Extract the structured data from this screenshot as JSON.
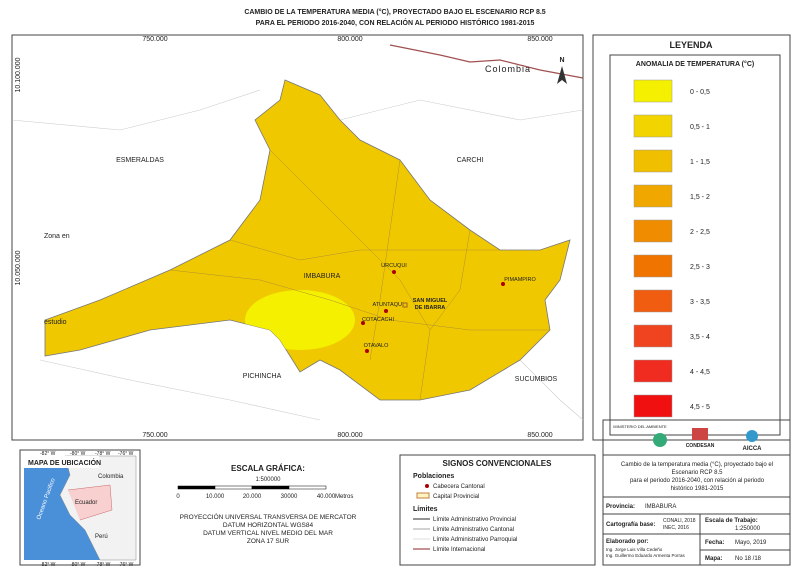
{
  "header": {
    "title_line1": "CAMBIO DE LA TEMPERATURA MEDIA (°C),  PROYECTADO BAJO EL ESCENARIO RCP 8.5",
    "title_line2": "PARA EL PERIODO 2016-2040, CON RELACIÓN AL PERIODO HISTÓRICO 1981-2015"
  },
  "map": {
    "coords_x": [
      "750.000",
      "800.000",
      "850.000"
    ],
    "coords_y": [
      "10.100.000",
      "10.050.000"
    ],
    "north": "N",
    "regions": [
      "ESMERALDAS",
      "CARCHI",
      "IMBABURA",
      "PICHINCHA",
      "SUCUMBIOS",
      "Colombia"
    ],
    "zone": [
      "Zona en",
      "estudio"
    ],
    "towns": [
      "URCUQUI",
      "PIMAMPIRO",
      "ATUNTAQUI",
      "COTACACHI",
      "OTAVALO"
    ],
    "capital": [
      "SAN MIGUEL",
      "DE IBARRA"
    ]
  },
  "legend": {
    "title": "LEYENDA",
    "subtitle": "ANOMALIA DE TEMPERATURA (°C)",
    "items": [
      {
        "label": "0 - 0,5",
        "color": "#f5f000"
      },
      {
        "label": "0,5 - 1",
        "color": "#f2d400"
      },
      {
        "label": "1 - 1,5",
        "color": "#f0c000"
      },
      {
        "label": "1,5 - 2",
        "color": "#f0a800"
      },
      {
        "label": "2 - 2,5",
        "color": "#f08c00"
      },
      {
        "label": "2,5 - 3",
        "color": "#f07400"
      },
      {
        "label": "3 - 3,5",
        "color": "#f05c10"
      },
      {
        "label": "3,5 - 4",
        "color": "#f04420"
      },
      {
        "label": "4 - 4,5",
        "color": "#f02c20"
      },
      {
        "label": "4,5 - 5",
        "color": "#f01010"
      }
    ]
  },
  "location_map": {
    "title": "MAPA DE UBICACIÓN",
    "labels": [
      "Colombia",
      "Ecuador",
      "Perú",
      "Oceano Pacifico"
    ],
    "lon": [
      "-82° W",
      "-80° W",
      "-78° W",
      "-76° W"
    ]
  },
  "scale": {
    "title": "ESCALA GRÁFICA:",
    "ratio": "1:500000",
    "ticks": [
      "0",
      "10.000",
      "20.000",
      "30000",
      "40.000"
    ],
    "unit": "Metros",
    "projection": [
      "PROYECCIÓN UNIVERSAL TRANSVERSA DE MERCATOR",
      "DATUM HORIZONTAL WGS84",
      "DATUM VERTICAL NIVEL MEDIO DEL MAR",
      "ZONA 17 SUR"
    ]
  },
  "signs": {
    "title": "SIGNOS CONVENCIONALES",
    "populations": "Poblaciones",
    "cantonal": "Cabecera Cantonal",
    "provincial": "Capital Provincial",
    "limits": "Límites",
    "limit_items": [
      "Límite Administrativo Provincial",
      "Límite Administrativo Cantonal",
      "Límite Administrativo Parroquial",
      "Límite Internacional"
    ]
  },
  "info": {
    "logos": [
      "MINISTERIO DEL AMBIENTE",
      "CONDESAN",
      "AICCA"
    ],
    "description": [
      "Cambio de la temperatura media (°C),  proyectado bajo el",
      "Escenario RCP 8.5",
      "para el periodo 2016-2040, con relación al periodo",
      "histórico 1981-2015"
    ],
    "province_label": "Provincia:",
    "province": "IMBABURA",
    "base_label": "Cartografía base:",
    "base": [
      "CONALI, 2018",
      "INEC, 2016"
    ],
    "work_scale_label": "Escala de Trabajo:",
    "work_scale": "1:250000",
    "author_label": "Elaborado por:",
    "authors": [
      "Ing. Jorge Luis Villa Cedeño",
      "Ing. Guillermo Eduardo Armenta Porras"
    ],
    "date_label": "Fecha:",
    "date": "Mayo, 2019",
    "map_label": "Mapa:",
    "map_no": "No 18 /18"
  }
}
